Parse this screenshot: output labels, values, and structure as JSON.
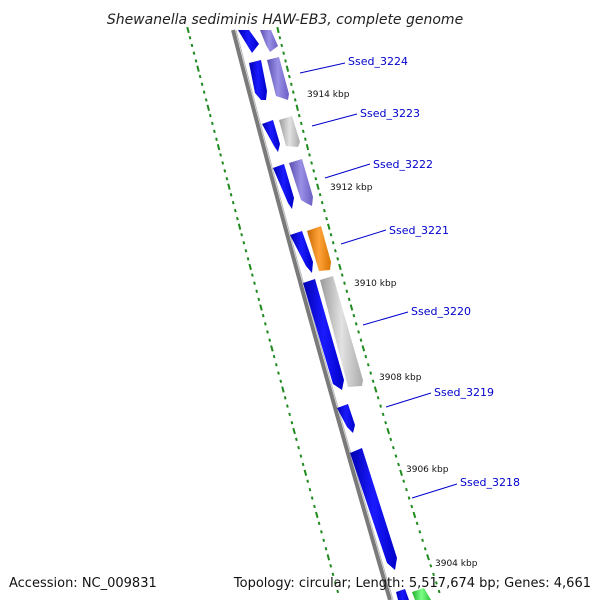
{
  "title": "Shewanella sediminis HAW-EB3, complete genome",
  "footer": {
    "accession": "Accession: NC_009831",
    "summary": "Topology: circular; Length: 5,517,674 bp; Genes: 4,661"
  },
  "colors": {
    "backbone": "#7a7a7a",
    "ruler_ticks": "#1f8a1f",
    "gene_forward": "#0a0aee",
    "gene_label": "#0000cc",
    "feature_lavender": "#7b6fd0",
    "feature_gray": "#c4c4c4",
    "feature_orange": "#f28a00",
    "feature_green": "#3ddc4a"
  },
  "genes": [
    {
      "label": "Ssed_3224"
    },
    {
      "label": "Ssed_3223"
    },
    {
      "label": "Ssed_3222"
    },
    {
      "label": "Ssed_3221"
    },
    {
      "label": "Ssed_3220"
    },
    {
      "label": "Ssed_3219"
    },
    {
      "label": "Ssed_3218"
    }
  ],
  "kbp_markers": [
    {
      "label": "3914 kbp"
    },
    {
      "label": "3912 kbp"
    },
    {
      "label": "3910 kbp"
    },
    {
      "label": "3908 kbp"
    },
    {
      "label": "3906 kbp"
    },
    {
      "label": "3904 kbp"
    }
  ]
}
